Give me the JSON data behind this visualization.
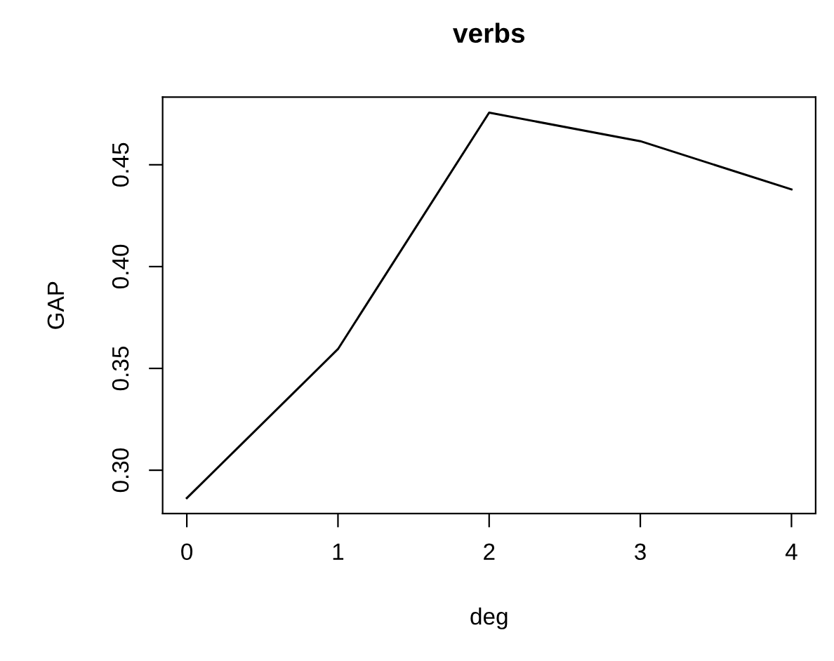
{
  "chart_data": {
    "type": "line",
    "title": "verbs",
    "xlabel": "deg",
    "ylabel": "GAP",
    "x": [
      0,
      1,
      2,
      3,
      4
    ],
    "series": [
      {
        "color": "#000000",
        "values": [
          0.2863,
          0.3595,
          0.4756,
          0.4616,
          0.4379
        ]
      }
    ],
    "xlim": [
      -0.16,
      4.16
    ],
    "xticks": [
      0,
      1,
      2,
      3,
      4
    ],
    "ylim": [
      0.2787,
      0.4832
    ],
    "yticks": [
      {
        "value": 0.3,
        "label": "0.30"
      },
      {
        "value": 0.35,
        "label": "0.35"
      },
      {
        "value": 0.4,
        "label": "0.40"
      },
      {
        "value": 0.45,
        "label": "0.45"
      }
    ],
    "grid": false,
    "legend": false,
    "marker": "none",
    "line_style": "solid"
  }
}
